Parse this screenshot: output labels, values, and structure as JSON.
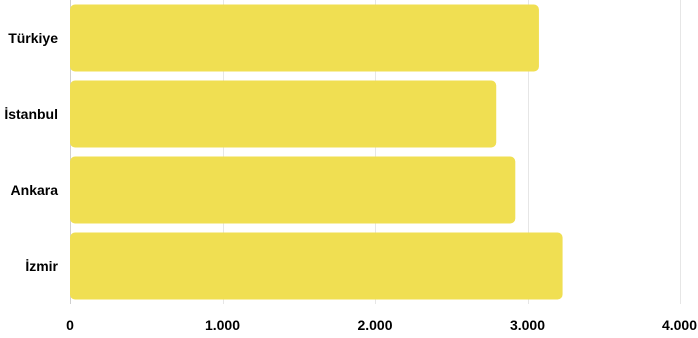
{
  "chart_data": {
    "type": "bar",
    "orientation": "horizontal",
    "categories": [
      "Türkiye",
      "İstanbul",
      "Ankara",
      "İzmir"
    ],
    "values": [
      3075,
      2795,
      2920,
      3230
    ],
    "xlim": [
      0,
      4000
    ],
    "x_ticks": [
      0,
      1000,
      2000,
      3000,
      4000
    ],
    "x_tick_labels": [
      "0",
      "1.000",
      "2.000",
      "3.000",
      "4.000"
    ],
    "grid": "vertical",
    "bar_color": "#f0df52",
    "title": "",
    "xlabel": "",
    "ylabel": ""
  }
}
